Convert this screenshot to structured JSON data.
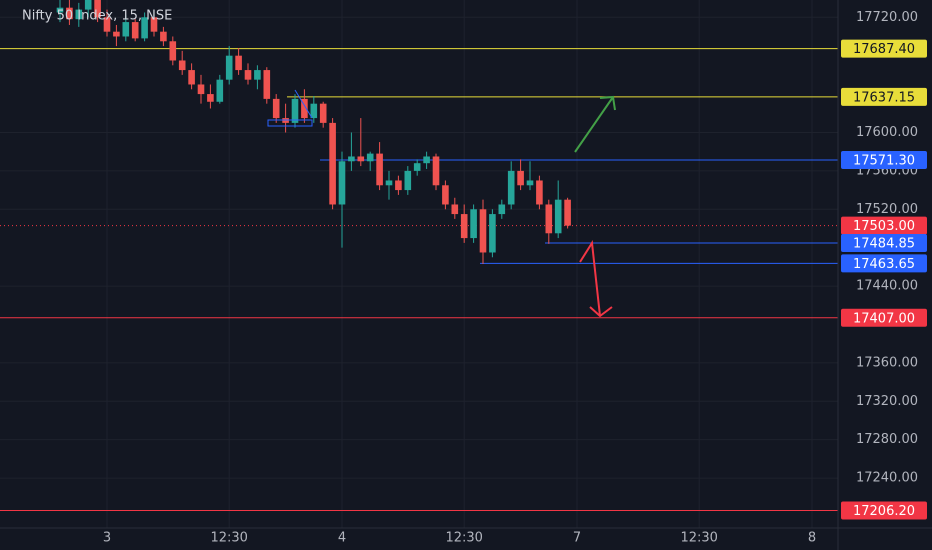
{
  "chart_data": {
    "type": "candlestick",
    "title": "Nifty 50 Index, 15, NSE",
    "categories": [
      null,
      null,
      null,
      null,
      null,
      "3",
      null,
      null,
      null,
      null,
      null,
      null,
      null,
      null,
      null,
      null,
      null,
      null,
      "12:30",
      null,
      null,
      null,
      null,
      null,
      null,
      null,
      null,
      null,
      null,
      null,
      "4",
      null,
      null,
      null,
      null,
      null,
      null,
      null,
      null,
      null,
      null,
      null,
      null,
      "12:30",
      null,
      null,
      null,
      null,
      null,
      null,
      null,
      null,
      null,
      null,
      null,
      "7",
      null,
      null,
      null,
      null,
      null,
      null,
      null,
      null,
      null,
      null,
      null,
      null,
      "12:30",
      null,
      null,
      null,
      null,
      null,
      null,
      null,
      null,
      null,
      null,
      null,
      "8",
      null,
      null
    ],
    "open": [
      17725,
      17730,
      17718,
      17728,
      17740,
      17720,
      17705,
      17700,
      17715,
      17698,
      17720,
      17705,
      17695,
      17675,
      17665,
      17650,
      17640,
      17632,
      17655,
      17680,
      17665,
      17655,
      17665,
      17635,
      17615,
      17610,
      17635,
      17615,
      17630,
      17610,
      17525,
      17570,
      17575,
      17570,
      17578,
      17545,
      17550,
      17540,
      17560,
      17568,
      17575,
      17545,
      17525,
      17515,
      17490,
      17520,
      17475,
      17515,
      17525,
      17560,
      17545,
      17550,
      17525,
      17495,
      17530,
      null,
      null,
      null,
      null,
      null,
      null,
      null,
      null,
      null,
      null,
      null,
      null,
      null,
      null,
      null,
      null,
      null,
      null,
      null,
      null,
      null,
      null,
      null,
      null,
      null,
      null,
      null,
      null
    ],
    "high": [
      17740,
      17738,
      17735,
      17745,
      17745,
      17728,
      17712,
      17722,
      17718,
      17725,
      17722,
      17710,
      17700,
      17685,
      17672,
      17660,
      17650,
      17660,
      17690,
      17688,
      17672,
      17670,
      17668,
      17640,
      17630,
      17640,
      17645,
      17638,
      17632,
      17615,
      17580,
      17600,
      17615,
      17580,
      17590,
      17560,
      17555,
      17565,
      17572,
      17580,
      17578,
      17550,
      17532,
      17525,
      17525,
      17530,
      17520,
      17530,
      17570,
      17572,
      17570,
      17555,
      17530,
      17550,
      17532,
      null,
      null,
      null,
      null,
      null,
      null,
      null,
      null,
      null,
      null,
      null,
      null,
      null,
      null,
      null,
      null,
      null,
      null,
      null,
      null,
      null,
      null,
      null,
      null,
      null,
      null,
      null,
      null
    ],
    "low": [
      17715,
      17712,
      17710,
      17720,
      17715,
      17700,
      17690,
      17695,
      17695,
      17695,
      17700,
      17690,
      17670,
      17660,
      17645,
      17630,
      17625,
      17630,
      17650,
      17660,
      17650,
      17645,
      17630,
      17610,
      17600,
      17605,
      17610,
      17610,
      17605,
      17520,
      17480,
      17560,
      17565,
      17560,
      17540,
      17530,
      17535,
      17535,
      17555,
      17562,
      17540,
      17520,
      17510,
      17485,
      17485,
      17463,
      17470,
      17510,
      17520,
      17540,
      17540,
      17520,
      17484,
      17490,
      17500,
      null,
      null,
      null,
      null,
      null,
      null,
      null,
      null,
      null,
      null,
      null,
      null,
      null,
      null,
      null,
      null,
      null,
      null,
      null,
      null,
      null,
      null,
      null,
      null,
      null,
      null,
      null,
      null
    ],
    "close": [
      17730,
      17718,
      17728,
      17740,
      17720,
      17705,
      17700,
      17715,
      17698,
      17720,
      17705,
      17695,
      17675,
      17665,
      17650,
      17640,
      17632,
      17655,
      17680,
      17665,
      17655,
      17665,
      17635,
      17615,
      17610,
      17635,
      17615,
      17630,
      17610,
      17525,
      17570,
      17575,
      17570,
      17578,
      17545,
      17550,
      17540,
      17560,
      17568,
      17575,
      17545,
      17525,
      17515,
      17490,
      17520,
      17475,
      17515,
      17525,
      17560,
      17545,
      17550,
      17525,
      17495,
      17530,
      17503,
      null,
      null,
      null,
      null,
      null,
      null,
      null,
      null,
      null,
      null,
      null,
      null,
      null,
      null,
      null,
      null,
      null,
      null,
      null,
      null,
      null,
      null,
      null,
      null,
      null,
      null,
      null,
      null
    ],
    "up_color": "#26a69a",
    "down_color": "#ef5350",
    "ylim": [
      17188,
      17738
    ],
    "yticks": [
      {
        "value": 17720,
        "label": "17720.00"
      },
      {
        "value": 17600,
        "label": "17600.00"
      },
      {
        "value": 17560,
        "label": "17560.00"
      },
      {
        "value": 17520,
        "label": "17520.00"
      },
      {
        "value": 17440,
        "label": "17440.00"
      },
      {
        "value": 17360,
        "label": "17360.00"
      },
      {
        "value": 17320,
        "label": "17320.00"
      },
      {
        "value": 17280,
        "label": "17280.00"
      },
      {
        "value": 17240,
        "label": "17240.00"
      }
    ],
    "grid": true,
    "levels": [
      {
        "value": 17687.4,
        "label": "17687.40",
        "color": "#e8dd3a",
        "style": "solid"
      },
      {
        "value": 17637.15,
        "label": "17637.15",
        "color": "#e8dd3a",
        "style": "solid"
      },
      {
        "value": 17571.3,
        "label": "17571.30",
        "color": "#2962ff",
        "style": "solid"
      },
      {
        "value": 17503,
        "label": "17503.00",
        "color": "#f23645",
        "style": "dotted"
      },
      {
        "value": 17484.85,
        "label": "17484.85",
        "color": "#2962ff",
        "style": "solid"
      },
      {
        "value": 17463.65,
        "label": "17463.65",
        "color": "#2962ff",
        "style": "solid"
      },
      {
        "value": 17407,
        "label": "17407.00",
        "color": "#f23645",
        "style": "solid"
      },
      {
        "value": 17206.2,
        "label": "17206.20",
        "color": "#f23645",
        "style": "solid"
      }
    ]
  }
}
